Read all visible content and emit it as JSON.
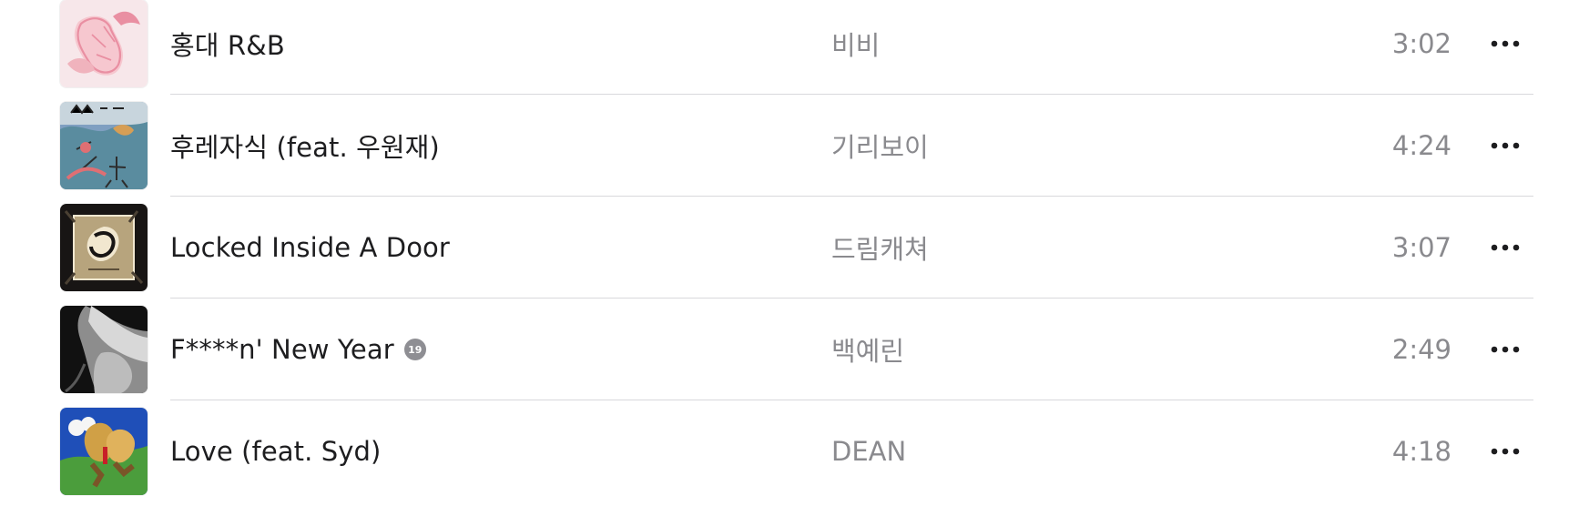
{
  "tracklist": {
    "tracks": [
      {
        "title": "홍대 R&B",
        "artist": "비비",
        "duration": "3:02",
        "explicit": false,
        "artwork_colors": [
          "#f7e7ea",
          "#e98fa2",
          "#f6c7cf"
        ]
      },
      {
        "title": "후레자식 (feat. 우원재)",
        "artist": "기리보이",
        "duration": "4:24",
        "explicit": false,
        "artwork_colors": [
          "#7f9fc1",
          "#5a8c9f",
          "#df6f73"
        ]
      },
      {
        "title": "Locked Inside A Door",
        "artist": "드림캐쳐",
        "duration": "3:07",
        "explicit": false,
        "artwork_colors": [
          "#181514",
          "#b7a47d",
          "#f1e7cf"
        ]
      },
      {
        "title": "F****n' New Year",
        "artist": "백예린",
        "duration": "2:49",
        "explicit": true,
        "explicit_label": "19",
        "artwork_colors": [
          "#111111",
          "#8d8d8d",
          "#d8d8d8"
        ]
      },
      {
        "title": "Love (feat. Syd)",
        "artist": "DEAN",
        "duration": "4:18",
        "explicit": false,
        "artwork_colors": [
          "#1f4fb8",
          "#d0a046",
          "#4b9d3c"
        ]
      }
    ]
  },
  "icons": {
    "more": "ellipsis-icon",
    "explicit": "explicit-badge"
  },
  "colors": {
    "primary_text": "#1d1d1f",
    "secondary_text": "#8a8a8e",
    "divider": "#d8d8dc",
    "badge": "#8e8e93"
  }
}
